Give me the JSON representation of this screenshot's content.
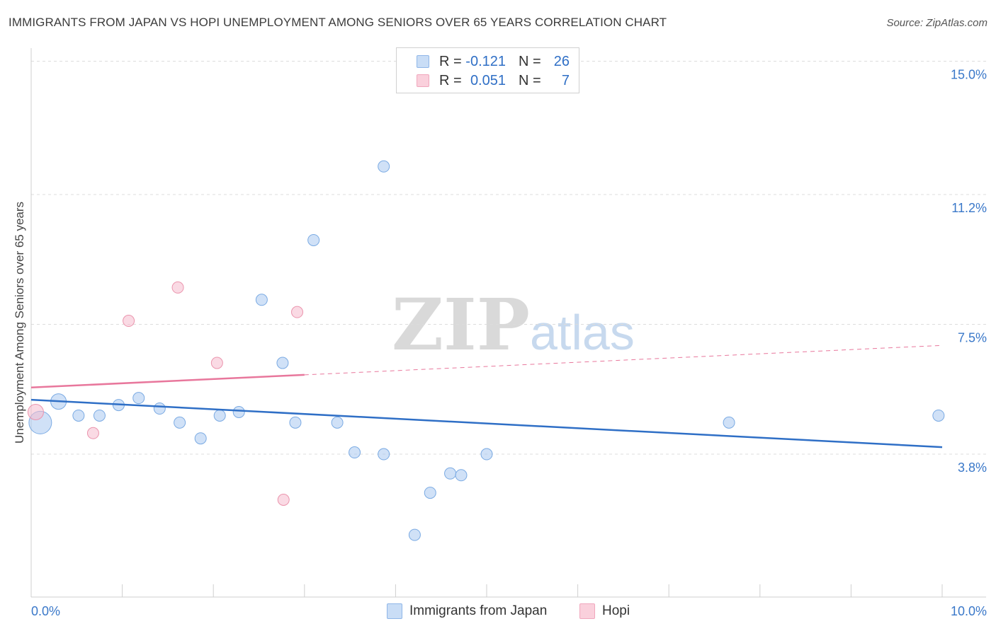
{
  "title": "IMMIGRANTS FROM JAPAN VS HOPI UNEMPLOYMENT AMONG SENIORS OVER 65 YEARS CORRELATION CHART",
  "source": "Source: ZipAtlas.com",
  "watermark": {
    "zip": "ZIP",
    "atlas": "atlas"
  },
  "legend": {
    "r_label": "R =",
    "n_label": "N =",
    "rows": [
      {
        "r": "-0.121",
        "n": "26",
        "color": "#a9c8f0"
      },
      {
        "r": "0.051",
        "n": "7",
        "color": "#f6bccd"
      }
    ]
  },
  "bottom_legend": [
    {
      "label": "Immigrants from Japan",
      "color": "#a9c8f0"
    },
    {
      "label": "Hopi",
      "color": "#f6bccd"
    }
  ],
  "chart_data": {
    "type": "scatter",
    "title": "IMMIGRANTS FROM JAPAN VS HOPI UNEMPLOYMENT AMONG SENIORS OVER 65 YEARS CORRELATION CHART",
    "xlabel": "",
    "ylabel": "Unemployment Among Seniors over 65 years",
    "xlim": [
      0,
      10
    ],
    "ylim": [
      0,
      15.4
    ],
    "x_tick_labels": [
      "0.0%",
      "10.0%"
    ],
    "y_ticks": [
      3.8,
      7.5,
      11.2,
      15.0
    ],
    "y_tick_labels": [
      "3.8%",
      "7.5%",
      "11.2%",
      "15.0%"
    ],
    "grid": "horizontal dashed",
    "legend_position": "top-center",
    "series": [
      {
        "name": "Immigrants from Japan",
        "color": "#a9c8f0",
        "stroke": "#7aaae3",
        "trend_color": "#2f6fc6",
        "trend": {
          "x0": 0.0,
          "y0": 5.35,
          "x1": 10.0,
          "y1": 4.0
        },
        "points": [
          {
            "x": 0.1,
            "y": 4.7,
            "size": "large"
          },
          {
            "x": 0.3,
            "y": 5.3,
            "size": "medium"
          },
          {
            "x": 0.52,
            "y": 4.9
          },
          {
            "x": 0.75,
            "y": 4.9
          },
          {
            "x": 0.96,
            "y": 5.2
          },
          {
            "x": 1.18,
            "y": 5.4
          },
          {
            "x": 1.41,
            "y": 5.1
          },
          {
            "x": 1.63,
            "y": 4.7
          },
          {
            "x": 1.86,
            "y": 4.25
          },
          {
            "x": 2.07,
            "y": 4.9
          },
          {
            "x": 2.28,
            "y": 5.0
          },
          {
            "x": 2.53,
            "y": 8.2
          },
          {
            "x": 2.76,
            "y": 6.4
          },
          {
            "x": 2.9,
            "y": 4.7
          },
          {
            "x": 3.1,
            "y": 9.9
          },
          {
            "x": 3.36,
            "y": 4.7
          },
          {
            "x": 3.55,
            "y": 3.85
          },
          {
            "x": 3.87,
            "y": 12.0
          },
          {
            "x": 3.87,
            "y": 3.8
          },
          {
            "x": 4.21,
            "y": 1.5
          },
          {
            "x": 4.38,
            "y": 2.7
          },
          {
            "x": 4.6,
            "y": 3.25
          },
          {
            "x": 4.72,
            "y": 3.2
          },
          {
            "x": 5.0,
            "y": 3.8
          },
          {
            "x": 7.66,
            "y": 4.7
          },
          {
            "x": 9.96,
            "y": 4.9
          }
        ]
      },
      {
        "name": "Hopi",
        "color": "#f6bccd",
        "stroke": "#eb94ad",
        "trend_color": "#e8779c",
        "trend": {
          "x0": 0.0,
          "y0": 5.7,
          "x1": 10.0,
          "y1": 6.9,
          "solid_until": 3.0
        },
        "points": [
          {
            "x": 0.05,
            "y": 5.0,
            "size": "medium"
          },
          {
            "x": 0.68,
            "y": 4.4
          },
          {
            "x": 1.07,
            "y": 7.6
          },
          {
            "x": 1.61,
            "y": 8.55
          },
          {
            "x": 2.04,
            "y": 6.4
          },
          {
            "x": 2.77,
            "y": 2.5
          },
          {
            "x": 2.92,
            "y": 7.85
          }
        ]
      }
    ]
  }
}
